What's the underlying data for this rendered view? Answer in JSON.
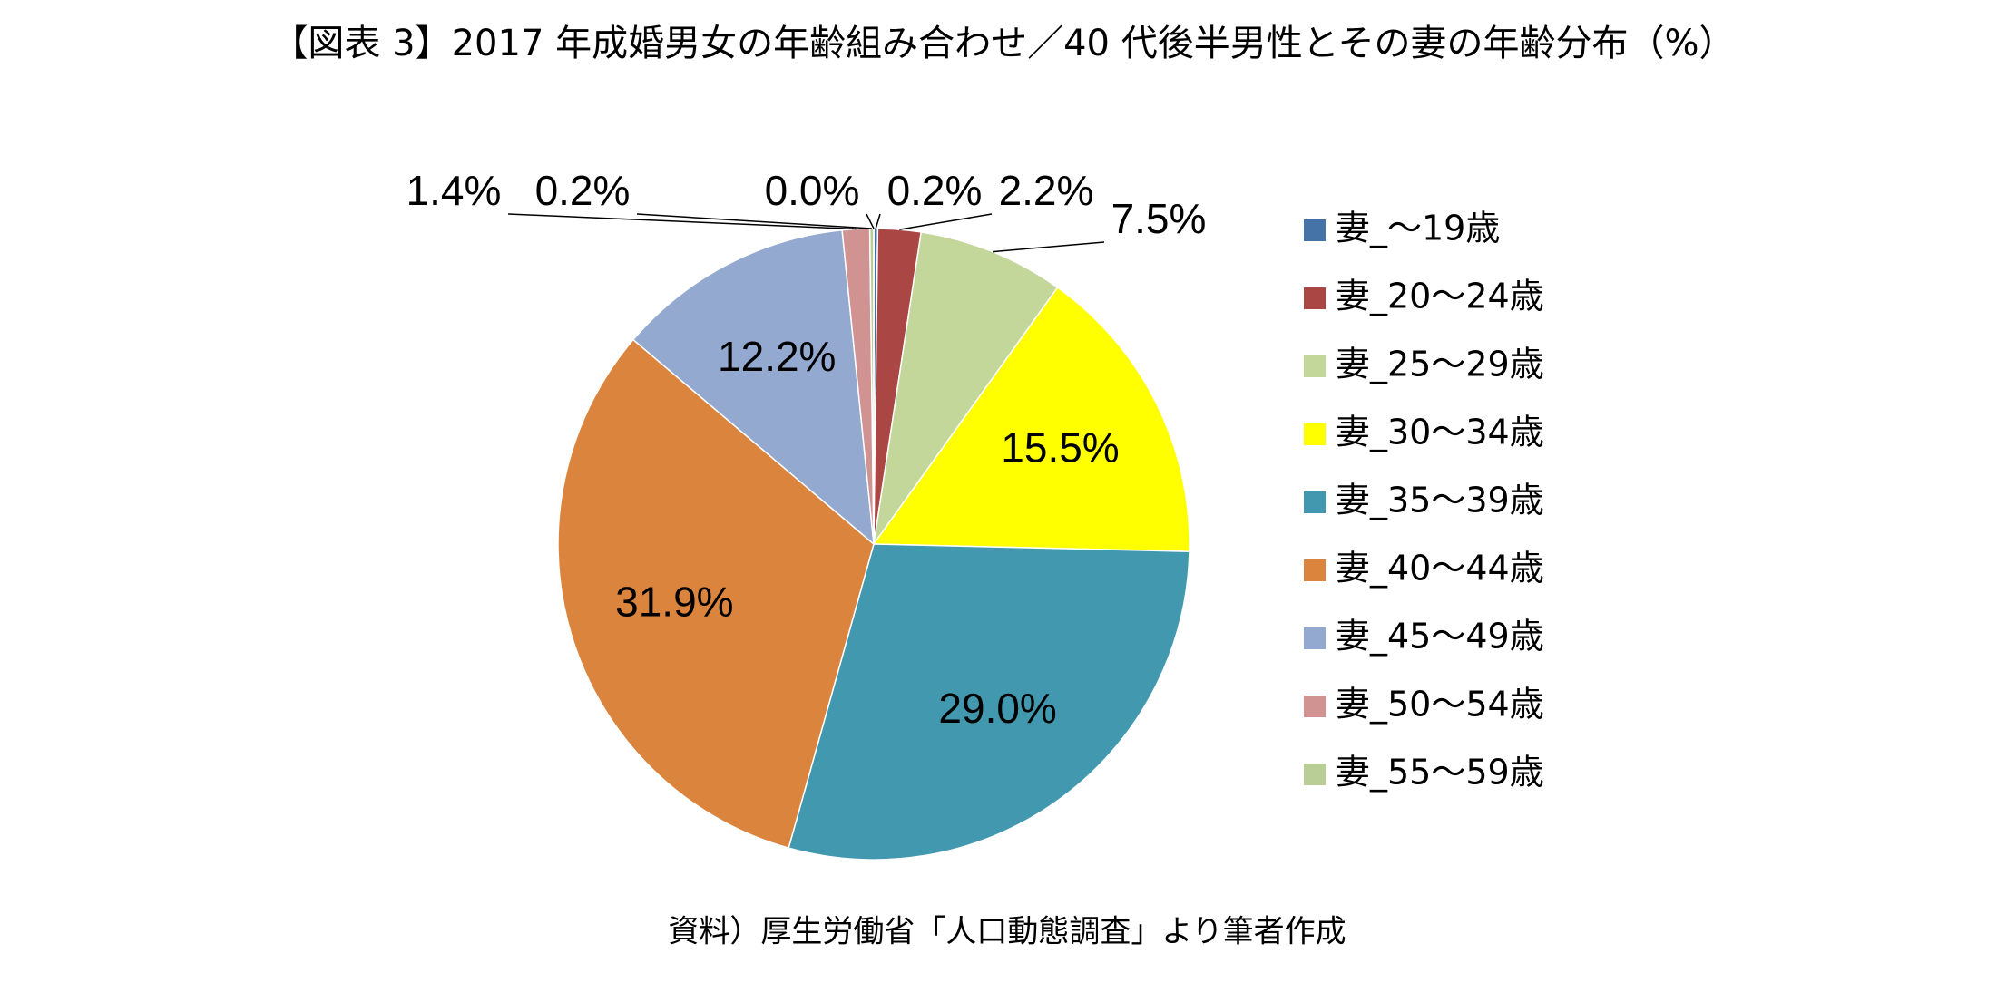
{
  "chart_data": {
    "type": "pie",
    "title": "【図表 3】2017 年成婚男女の年齢組み合わせ／40 代後半男性とその妻の年齢分布（%）",
    "categories": [
      "妻_～19歳",
      "妻_20～24歳",
      "妻_25～29歳",
      "妻_30～34歳",
      "妻_35～39歳",
      "妻_40～44歳",
      "妻_45～49歳",
      "妻_50～54歳",
      "妻_55～59歳",
      null
    ],
    "values": [
      0.2,
      2.2,
      7.5,
      15.5,
      29.0,
      31.9,
      12.2,
      1.4,
      0.2,
      0.0
    ],
    "value_labels": [
      "0.2%",
      "2.2%",
      "7.5%",
      "15.5%",
      "29.0%",
      "31.9%",
      "12.2%",
      "1.4%",
      "0.2%",
      "0.0%"
    ],
    "colors": [
      "#4572a7",
      "#aa4643",
      "#c4d79b",
      "#ffff00",
      "#4198af",
      "#db843d",
      "#93a9cf",
      "#d19392",
      "#b9cd96",
      "#a99bbd"
    ],
    "legend": "right",
    "source": "資料）厚生労働省「人口動態調査」より筆者作成"
  }
}
